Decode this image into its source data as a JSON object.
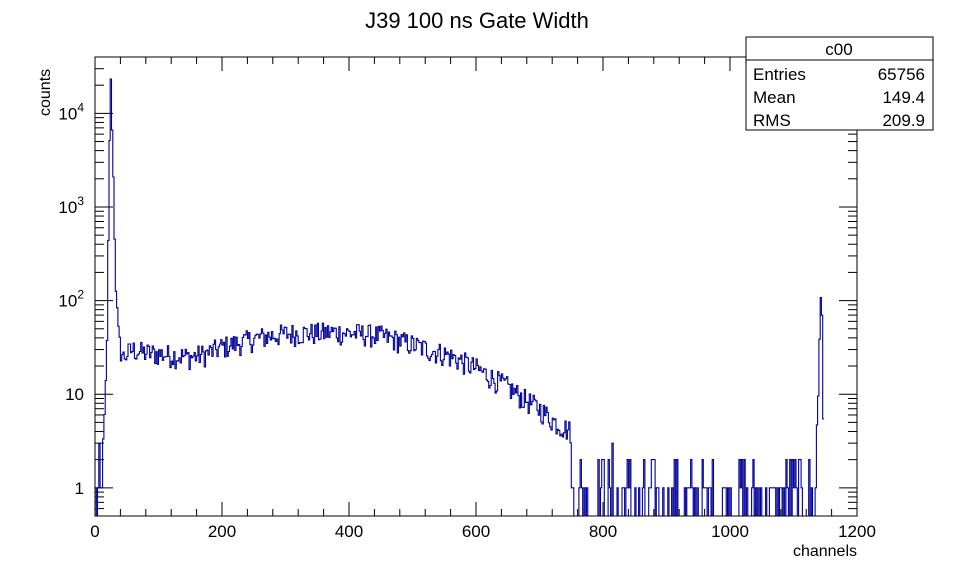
{
  "chart_data": {
    "type": "line",
    "title": "J39 100 ns Gate Width",
    "xlabel": "channels",
    "ylabel": "counts",
    "xlim": [
      0,
      1200
    ],
    "ylim": [
      0.5,
      40000
    ],
    "yscale": "log",
    "grid": false,
    "legend": "none",
    "line_color": "#000099",
    "x_ticks": [
      {
        "value": 0,
        "label": "0"
      },
      {
        "value": 200,
        "label": "200"
      },
      {
        "value": 400,
        "label": "400"
      },
      {
        "value": 600,
        "label": "600"
      },
      {
        "value": 800,
        "label": "800"
      },
      {
        "value": 1000,
        "label": "1000"
      },
      {
        "value": 1200,
        "label": "1200"
      }
    ],
    "y_ticks": [
      {
        "value": 1,
        "base": "1",
        "exp": ""
      },
      {
        "value": 10,
        "base": "10",
        "exp": ""
      },
      {
        "value": 100,
        "base": "10",
        "exp": "2"
      },
      {
        "value": 1000,
        "base": "10",
        "exp": "3"
      },
      {
        "value": 10000,
        "base": "10",
        "exp": "4"
      }
    ],
    "series": [
      {
        "x": [
          0,
          5,
          10,
          15,
          20,
          22,
          25,
          27,
          30,
          33,
          36,
          40,
          45,
          50,
          60,
          75,
          100,
          125,
          150,
          175,
          200,
          225,
          250,
          275,
          300,
          325,
          350,
          375,
          400,
          425,
          450,
          475,
          500,
          525,
          550,
          575,
          600,
          625,
          650,
          675,
          700,
          725,
          750,
          775,
          800,
          825,
          850,
          875,
          900,
          925,
          950,
          975,
          1000,
          1025,
          1050,
          1075,
          1100,
          1120,
          1130,
          1138,
          1142,
          1144,
          1146,
          1148
        ],
        "y": [
          1,
          2,
          3,
          5,
          50,
          3000,
          20000,
          8000,
          1000,
          150,
          50,
          30,
          25,
          27,
          30,
          28,
          27,
          26,
          25,
          27,
          32,
          35,
          39,
          42,
          44,
          45,
          45,
          46,
          45,
          44,
          42,
          38,
          34,
          30,
          27,
          23,
          19,
          15,
          12,
          9,
          7,
          5,
          4,
          3.3,
          2.6,
          2.2,
          1.9,
          1.7,
          1.5,
          1.4,
          1.3,
          1.2,
          1.15,
          1.1,
          1.1,
          1.05,
          1.1,
          1.3,
          2,
          5,
          80,
          160,
          40,
          1
        ]
      }
    ],
    "stats_box": {
      "title": "c00",
      "rows": [
        {
          "label": "Entries",
          "value": "65756"
        },
        {
          "label": "Mean",
          "value": "149.4"
        },
        {
          "label": "RMS",
          "value": "209.9"
        }
      ]
    }
  }
}
